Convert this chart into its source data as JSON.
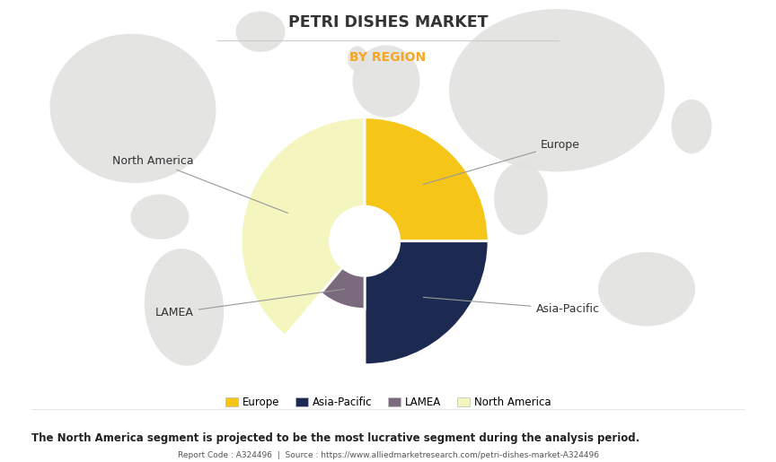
{
  "title": "PETRI DISHES MARKET",
  "subtitle": "BY REGION",
  "title_color": "#333333",
  "subtitle_color": "#F5A623",
  "segments": [
    {
      "label": "North America",
      "value": 180,
      "color": "#F5F5C0",
      "start_angle": 90,
      "inner_r": 0.0,
      "outer_r": 1.0
    },
    {
      "label": "Europe",
      "value": 90,
      "color": "#F5C518",
      "start_angle": 90,
      "inner_r": 0.0,
      "outer_r": 1.0
    },
    {
      "label": "Asia-Pacific",
      "value": 90,
      "color": "#1C2951",
      "start_angle": 0,
      "inner_r": 0.28,
      "outer_r": 1.0
    },
    {
      "label": "LAMEA",
      "value": 90,
      "color": "#7B6A7D",
      "start_angle": 180,
      "inner_r": 0.28,
      "outer_r": 0.55
    }
  ],
  "legend_order": [
    "Europe",
    "Asia-Pacific",
    "LAMEA",
    "North America"
  ],
  "bg_color": "#f0f0ee",
  "continent_color": "#e2e2df",
  "white_hole_r": 0.28,
  "footer_text": "The North America segment is projected to be the most lucrative segment during the analysis period.",
  "source_text": "Report Code : A324496  |  Source : https://www.alliedmarketresearch.com/petri-dishes-market-A324496",
  "fig_width": 8.64,
  "fig_height": 5.15,
  "title_line_color": "#cccccc",
  "line_color": "#999999",
  "label_font_size": 9,
  "title_font_size": 12.5,
  "subtitle_font_size": 10,
  "footer_font_size": 8.5,
  "source_font_size": 6.5
}
